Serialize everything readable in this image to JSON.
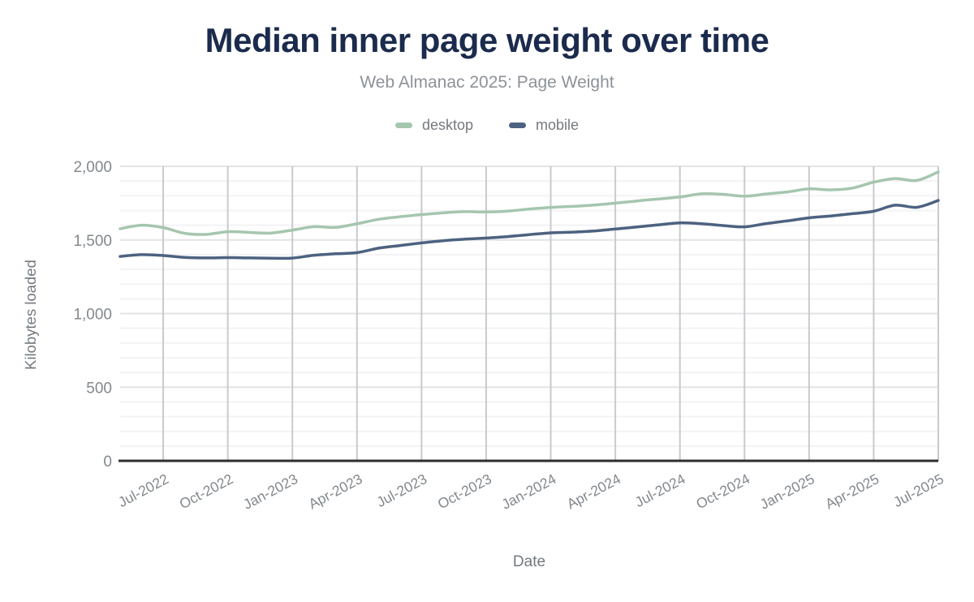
{
  "title": "Median inner page weight over time",
  "subtitle": "Web Almanac 2025: Page Weight",
  "legend": [
    {
      "label": "desktop",
      "color": "#a5c6af"
    },
    {
      "label": "mobile",
      "color": "#4d6280"
    }
  ],
  "colors": {
    "title": "#1b2b4d",
    "subtitle": "#8d9298",
    "tick_label": "#83888d",
    "axis_title": "#73797f",
    "vertical_grid": "#c9cacc",
    "major_grid": "#e2e3e5",
    "minor_grid": "#f3f3f5",
    "baseline": "#2e2e2e",
    "desktop_line": "#a5c6af",
    "mobile_line": "#4d6280"
  },
  "chart_data": {
    "type": "line",
    "title": "Median inner page weight over time",
    "subtitle": "Web Almanac 2025: Page Weight",
    "xlabel": "Date",
    "ylabel": "Kilobytes loaded",
    "ylim": [
      0,
      2000
    ],
    "y_ticks": [
      0,
      500,
      1000,
      1500,
      2000
    ],
    "y_minor_grid_step": 100,
    "grid": "both",
    "legend_position": "top-center",
    "x": [
      "May-2022",
      "Jun-2022",
      "Jul-2022",
      "Aug-2022",
      "Sep-2022",
      "Oct-2022",
      "Nov-2022",
      "Dec-2022",
      "Jan-2023",
      "Feb-2023",
      "Mar-2023",
      "Apr-2023",
      "May-2023",
      "Jun-2023",
      "Jul-2023",
      "Aug-2023",
      "Sep-2023",
      "Oct-2023",
      "Nov-2023",
      "Dec-2023",
      "Jan-2024",
      "Feb-2024",
      "Mar-2024",
      "Apr-2024",
      "May-2024",
      "Jun-2024",
      "Jul-2024",
      "Aug-2024",
      "Sep-2024",
      "Oct-2024",
      "Nov-2024",
      "Dec-2024",
      "Jan-2025",
      "Feb-2025",
      "Mar-2025",
      "Apr-2025",
      "May-2025",
      "Jun-2025",
      "Jul-2025"
    ],
    "x_tick_every": 3,
    "x_tick_start_index": 2,
    "x_tick_labels": [
      "Jul-2022",
      "Oct-2022",
      "Jan-2023",
      "Apr-2023",
      "Jul-2023",
      "Oct-2023",
      "Jan-2024",
      "Apr-2024",
      "Jul-2024",
      "Oct-2024",
      "Jan-2025",
      "Apr-2025",
      "Jul-2025"
    ],
    "series": [
      {
        "name": "desktop",
        "color": "#a5c6af",
        "values": [
          1576,
          1600,
          1584,
          1545,
          1538,
          1556,
          1551,
          1547,
          1567,
          1590,
          1585,
          1610,
          1640,
          1658,
          1672,
          1684,
          1692,
          1690,
          1696,
          1710,
          1721,
          1728,
          1737,
          1750,
          1765,
          1778,
          1792,
          1813,
          1810,
          1797,
          1812,
          1826,
          1847,
          1840,
          1852,
          1892,
          1917,
          1904,
          1962
        ]
      },
      {
        "name": "mobile",
        "color": "#4d6280",
        "values": [
          1388,
          1400,
          1394,
          1382,
          1378,
          1380,
          1378,
          1376,
          1377,
          1396,
          1406,
          1414,
          1444,
          1462,
          1480,
          1495,
          1505,
          1513,
          1523,
          1536,
          1548,
          1553,
          1561,
          1574,
          1588,
          1603,
          1616,
          1610,
          1598,
          1589,
          1611,
          1630,
          1650,
          1663,
          1678,
          1695,
          1736,
          1722,
          1768
        ]
      }
    ]
  }
}
